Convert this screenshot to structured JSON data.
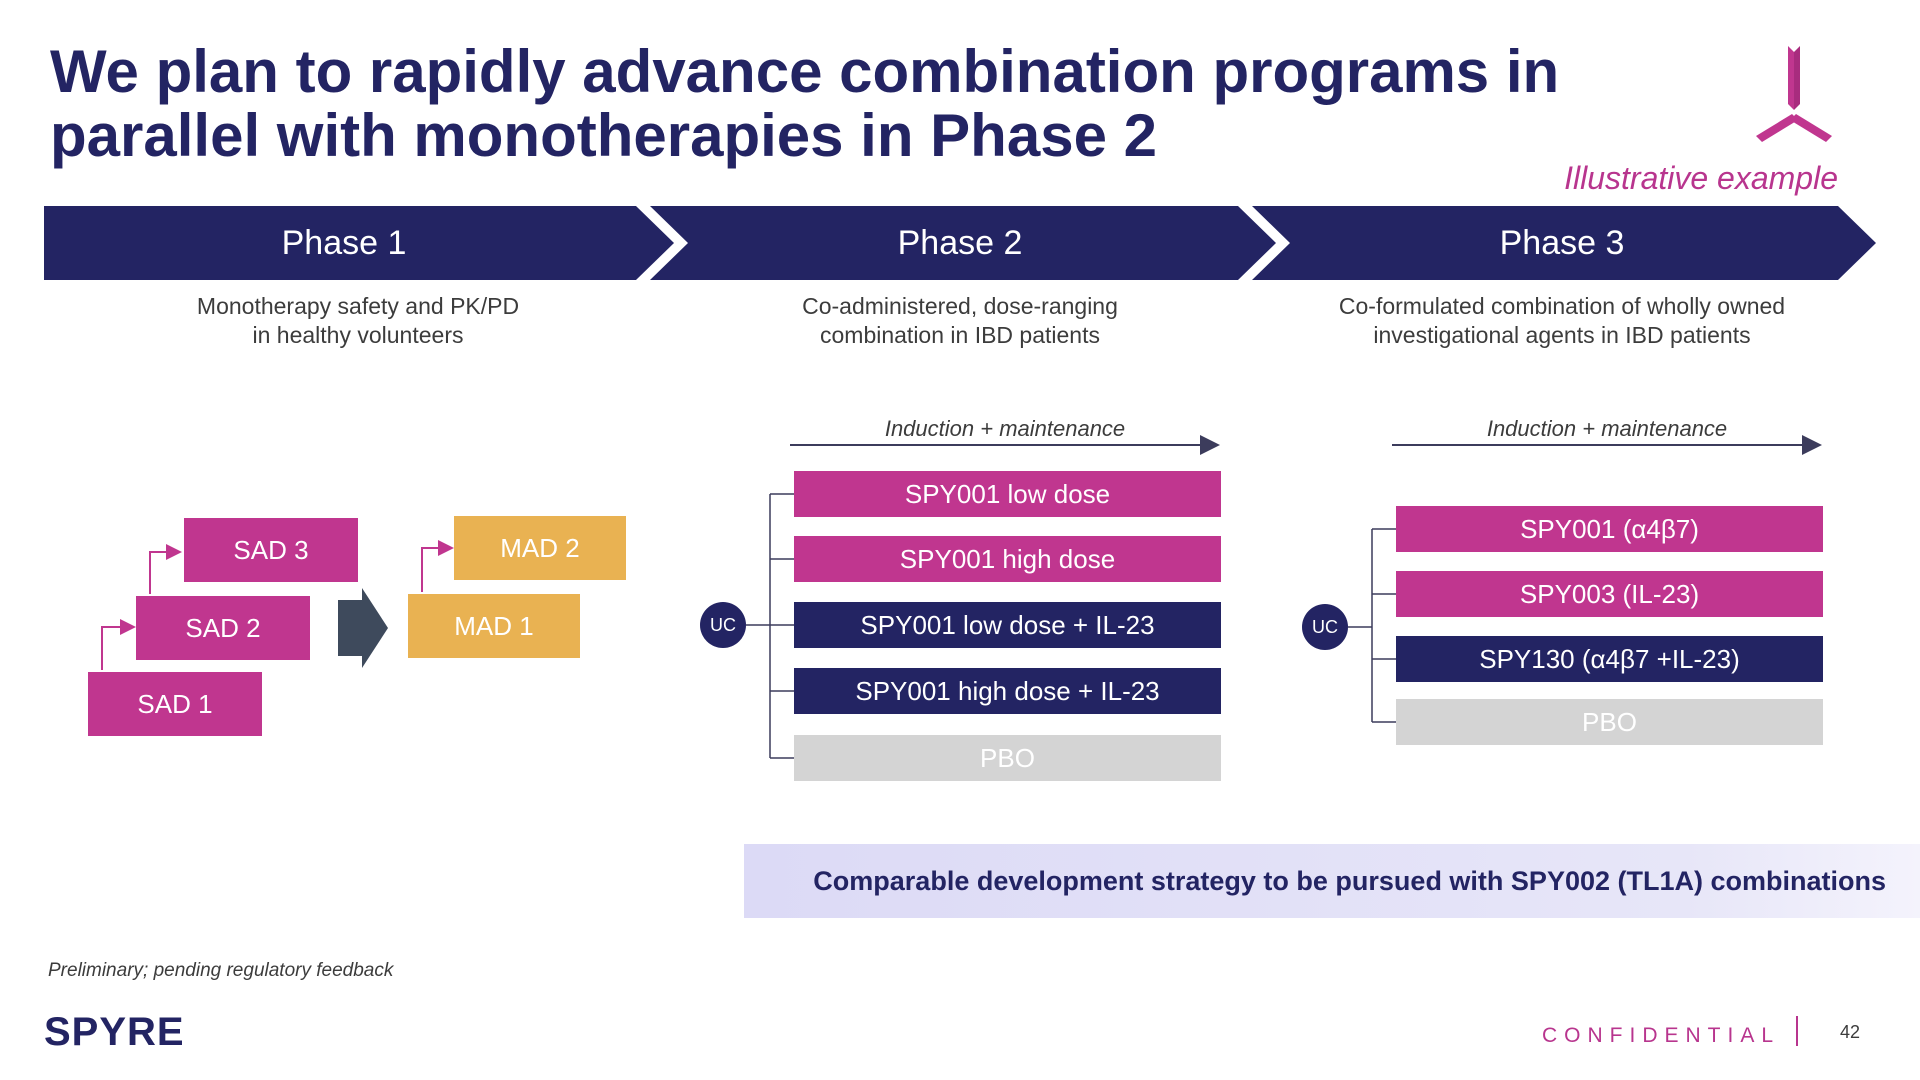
{
  "title": "We plan to rapidly advance combination programs in parallel with monotherapies in Phase 2",
  "illustrative_label": "Illustrative example",
  "phases": [
    {
      "label": "Phase 1",
      "description_line1": "Monotherapy safety and PK/PD",
      "description_line2": "in healthy volunteers"
    },
    {
      "label": "Phase 2",
      "description_line1": "Co-administered, dose-ranging",
      "description_line2": "combination in IBD patients"
    },
    {
      "label": "Phase 3",
      "description_line1": "Co-formulated combination of wholly owned",
      "description_line2": "investigational agents in IBD patients"
    }
  ],
  "phase1": {
    "sad": [
      "SAD 1",
      "SAD 2",
      "SAD 3"
    ],
    "mad": [
      "MAD 1",
      "MAD 2"
    ]
  },
  "phase2": {
    "induction_label": "Induction + maintenance",
    "uc_label": "UC",
    "arms": [
      "SPY001 low dose",
      "SPY001 high dose",
      "SPY001 low dose + IL-23",
      "SPY001 high dose + IL-23",
      "PBO"
    ]
  },
  "phase3": {
    "induction_label": "Induction + maintenance",
    "uc_label": "UC",
    "arms": [
      "SPY001 (α4β7)",
      "SPY003 (IL-23)",
      "SPY130 (α4β7 +IL-23)",
      "PBO"
    ]
  },
  "banner": "Comparable development strategy to be pursued with SPY002 (TL1A) combinations",
  "footnote": "Preliminary; pending regulatory feedback",
  "brand": "SPYRE",
  "confidential": "CONFIDENTIAL",
  "page_number": "42",
  "colors": {
    "navy": "#232463",
    "magenta": "#c0368f",
    "amber": "#e9b252",
    "grey": "#d4d4d4"
  }
}
